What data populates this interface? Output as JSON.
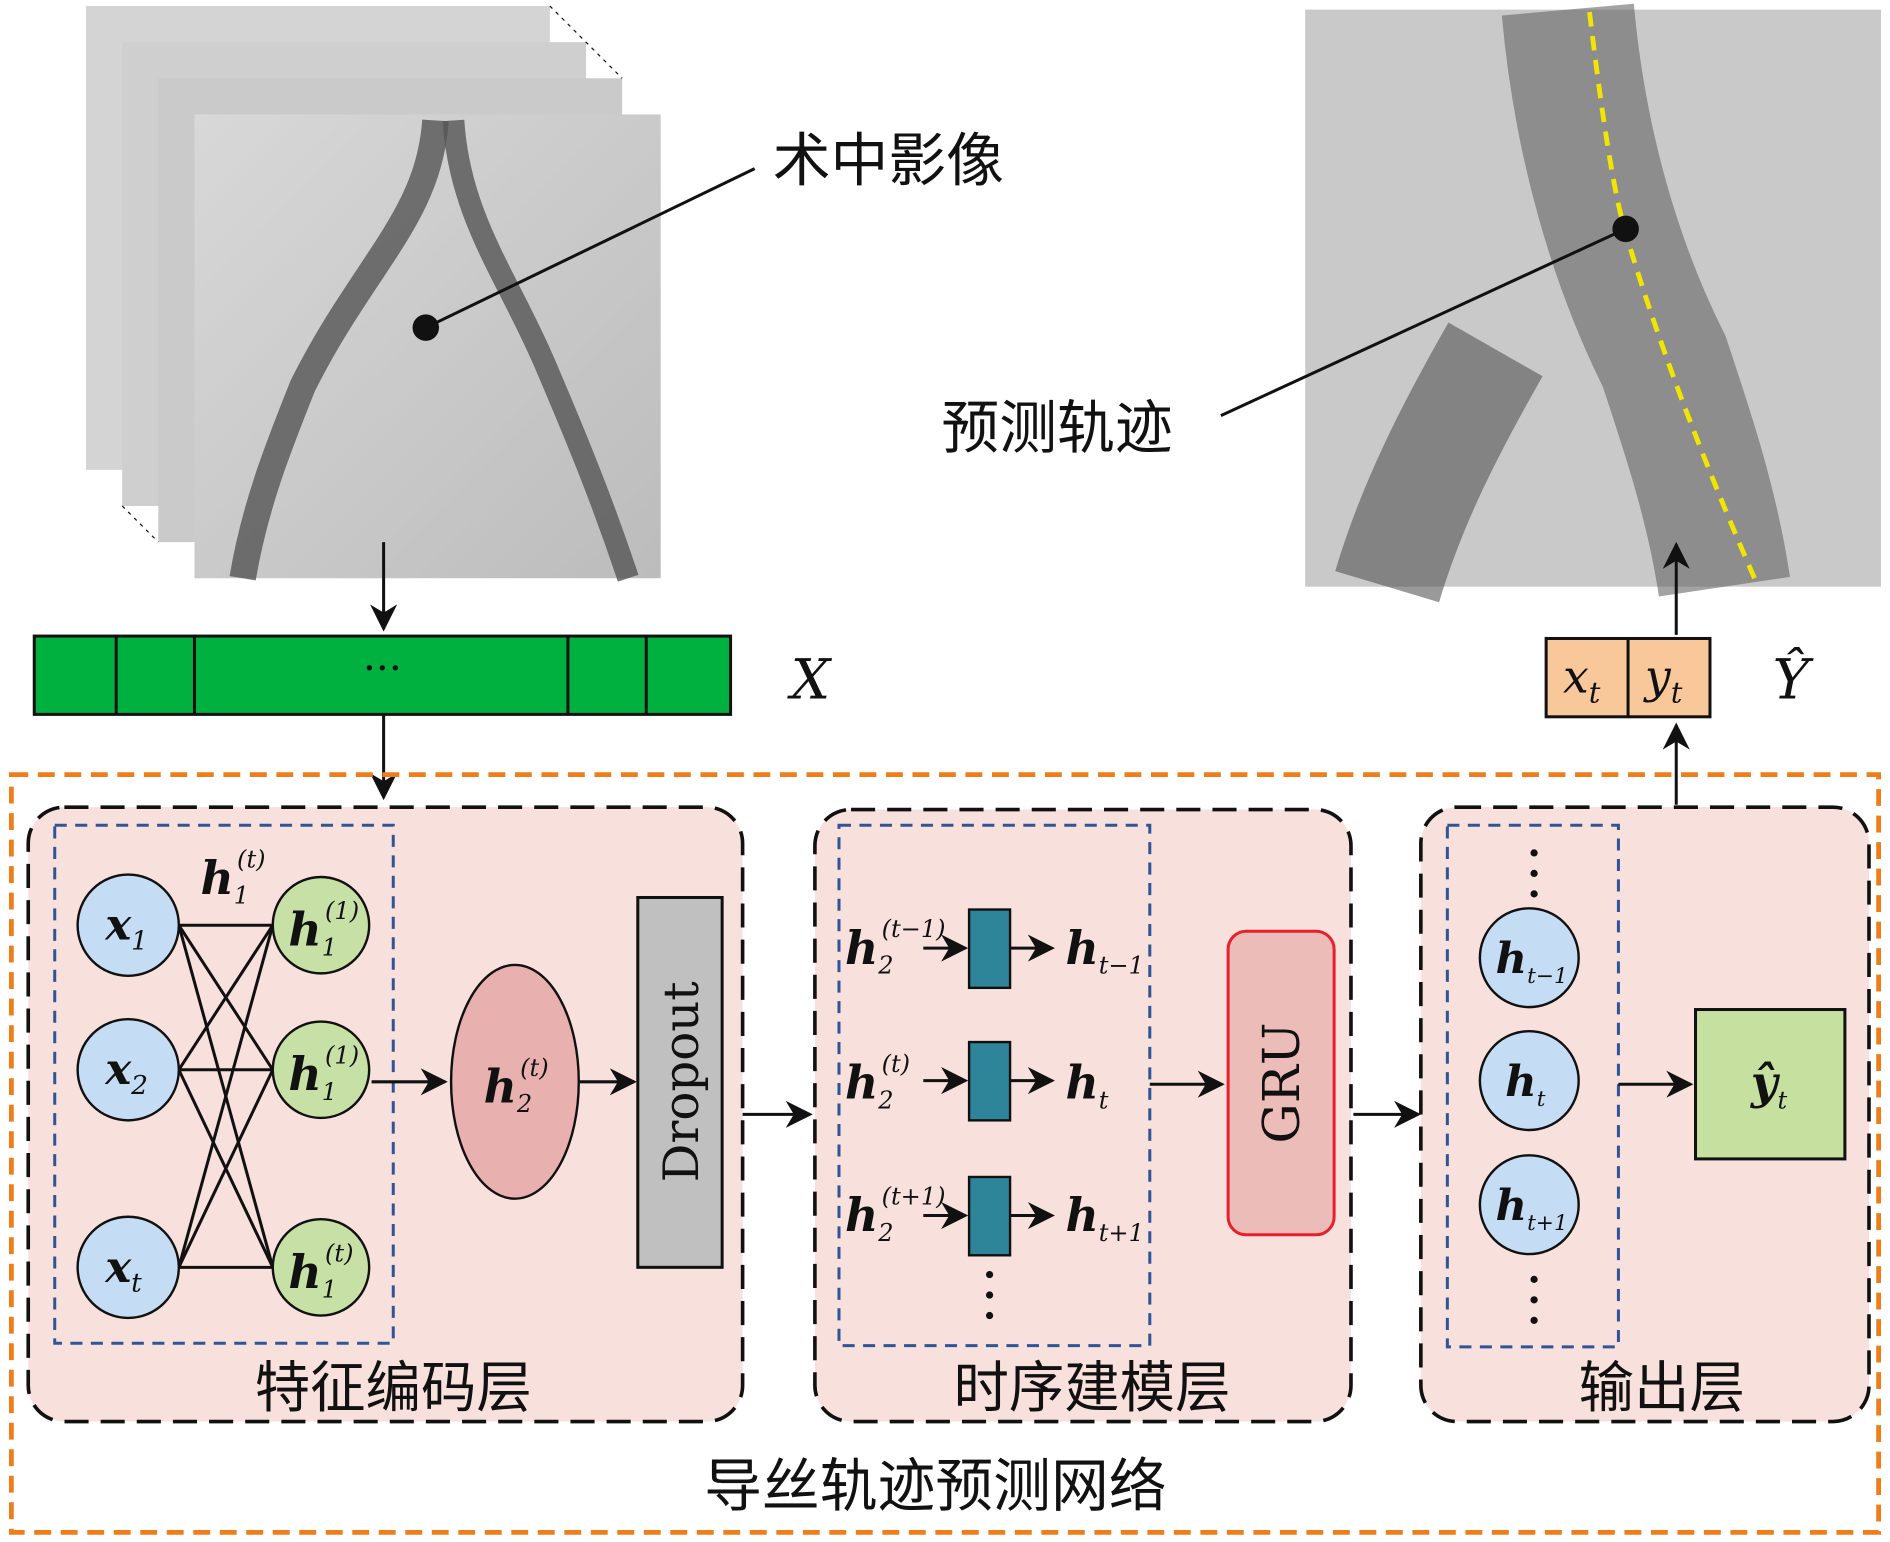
{
  "labels": {
    "intraop_image": "术中影像",
    "predicted_trajectory": "预测轨迹",
    "input_ellipsis": "···",
    "input_symbol": "X",
    "output_symbol": "Ŷ",
    "output_x": "x",
    "output_y": "y",
    "output_sub": "t",
    "network_title": "导丝轨迹预测网络",
    "layer1_title": "特征编码层",
    "layer2_title": "时序建模层",
    "layer3_title": "输出层",
    "dropout": "Dropout",
    "gru": "GRU"
  },
  "encoder": {
    "inputs": [
      {
        "sym": "x",
        "sub": "1"
      },
      {
        "sym": "x",
        "sub": "2"
      },
      {
        "sym": "x",
        "sub": "t"
      }
    ],
    "hidden": [
      {
        "sym": "h",
        "sub": "1",
        "sup": "(1)"
      },
      {
        "sym": "h",
        "sub": "1",
        "sup": "(1)"
      },
      {
        "sym": "h",
        "sub": "1",
        "sup": "(t)"
      }
    ],
    "hidden_label": {
      "sym": "h",
      "sub": "1",
      "sup": "(t)"
    },
    "h2": {
      "sym": "h",
      "sub": "2",
      "sup": "(t)"
    }
  },
  "temporal": {
    "rows": [
      {
        "in_sub": "2",
        "in_sup": "(t−1)",
        "out": "h",
        "out_sub": "t−1"
      },
      {
        "in_sub": "2",
        "in_sup": "(t)",
        "out": "h",
        "out_sub": "t"
      },
      {
        "in_sub": "2",
        "in_sup": "(t+1)",
        "out": "h",
        "out_sub": "t+1"
      }
    ]
  },
  "output_layer": {
    "nodes": [
      {
        "sym": "h",
        "sub": "t−1"
      },
      {
        "sym": "h",
        "sub": "t"
      },
      {
        "sym": "h",
        "sub": "t+1"
      }
    ],
    "result": {
      "sym": "ŷ",
      "sub": "t"
    }
  },
  "colors": {
    "input_bar": "#00b140",
    "network_border": "#ef7d1a",
    "panel_fill": "#f8e1dc",
    "inner_border": "#2f5597",
    "input_node": "#c5dcf5",
    "hidden_node": "#c6e0a6",
    "ellipse": "#e9b0b0",
    "teal": "#2e8599",
    "gru_fill": "#ecbdb8",
    "gru_border": "#e8202a",
    "output_box": "#f9c89a",
    "trajectory": "#f2e600"
  }
}
